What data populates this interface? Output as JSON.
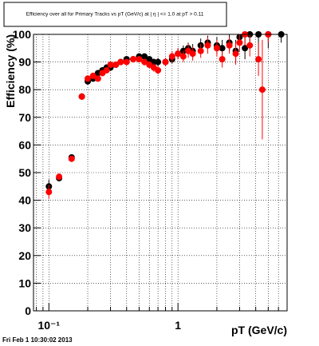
{
  "chart_data": {
    "type": "scatter",
    "title": "Efficiency over all for Primary Tracks vs pT (GeV/c) at |  η  | <= 1.0 at pT > 0.11",
    "x_label": "pT (GeV/c)",
    "y_label": "Efficiency (%)",
    "footer": "Fri Feb  1 10:30:02 2013",
    "xscale": "log",
    "grid": true,
    "xlim": [
      0.076,
      7.0
    ],
    "ylim": [
      0,
      100
    ],
    "xticks": [
      {
        "value": 0.1,
        "label": "10⁻¹"
      },
      1
    ],
    "xminor": [
      0.08,
      0.09,
      0.2,
      0.3,
      0.4,
      0.5,
      0.6,
      0.7,
      0.8,
      0.9,
      2,
      3,
      4,
      5,
      6,
      7
    ],
    "yticks": [
      0,
      10,
      20,
      30,
      40,
      50,
      60,
      70,
      80,
      90,
      100
    ],
    "series": [
      {
        "color": "#000000",
        "x": [
          0.1,
          0.12,
          0.15,
          0.18,
          0.2,
          0.22,
          0.24,
          0.26,
          0.28,
          0.3,
          0.33,
          0.36,
          0.4,
          0.45,
          0.5,
          0.55,
          0.6,
          0.65,
          0.7,
          0.8,
          0.9,
          1.0,
          1.1,
          1.2,
          1.3,
          1.5,
          1.7,
          2.0,
          2.2,
          2.5,
          2.8,
          3.0,
          3.3,
          3.6,
          4.2,
          5.0,
          6.3
        ],
        "values": [
          45,
          48,
          55.5,
          77.5,
          83,
          84,
          86,
          87,
          88,
          88,
          89,
          90,
          91,
          91,
          92,
          92,
          91,
          90,
          90,
          90,
          91,
          93,
          94,
          95,
          94,
          96,
          97,
          96,
          95,
          97,
          94,
          99,
          95,
          100,
          100,
          100,
          100
        ],
        "errors": [
          2.5,
          1.2,
          1,
          1.2,
          1,
          1,
          1,
          1,
          1,
          1,
          1,
          1,
          1,
          1,
          1,
          1,
          1.2,
          1.2,
          1.5,
          1.5,
          1.5,
          2,
          2,
          2,
          2.5,
          2.5,
          2.5,
          3,
          3,
          3,
          4,
          3,
          4,
          3,
          8,
          5,
          3
        ]
      },
      {
        "color": "#ff0000",
        "x": [
          0.1,
          0.12,
          0.15,
          0.18,
          0.2,
          0.22,
          0.24,
          0.26,
          0.28,
          0.3,
          0.33,
          0.36,
          0.4,
          0.45,
          0.5,
          0.55,
          0.6,
          0.65,
          0.7,
          0.8,
          0.9,
          1.0,
          1.1,
          1.2,
          1.3,
          1.5,
          1.7,
          2.0,
          2.2,
          2.5,
          2.8,
          3.0,
          3.3,
          3.6,
          4.2,
          4.5,
          5.0
        ],
        "values": [
          43,
          48.5,
          55,
          77.5,
          84,
          85,
          84,
          86,
          87,
          89,
          89,
          90,
          90,
          91,
          91,
          90,
          89,
          88,
          87,
          90,
          92,
          93,
          92,
          94,
          93,
          94,
          96,
          95,
          91,
          96,
          93,
          97,
          100,
          96,
          91,
          80,
          100
        ],
        "errors": [
          2.5,
          1.2,
          1,
          1.2,
          1,
          1,
          1,
          1,
          1,
          1,
          1,
          1,
          1,
          1,
          1,
          1.2,
          1.2,
          1.5,
          1.5,
          1.5,
          2,
          2,
          2,
          2.5,
          2.5,
          2.5,
          3,
          3,
          3,
          3,
          4,
          3,
          4,
          4,
          6,
          18,
          3
        ]
      }
    ]
  }
}
